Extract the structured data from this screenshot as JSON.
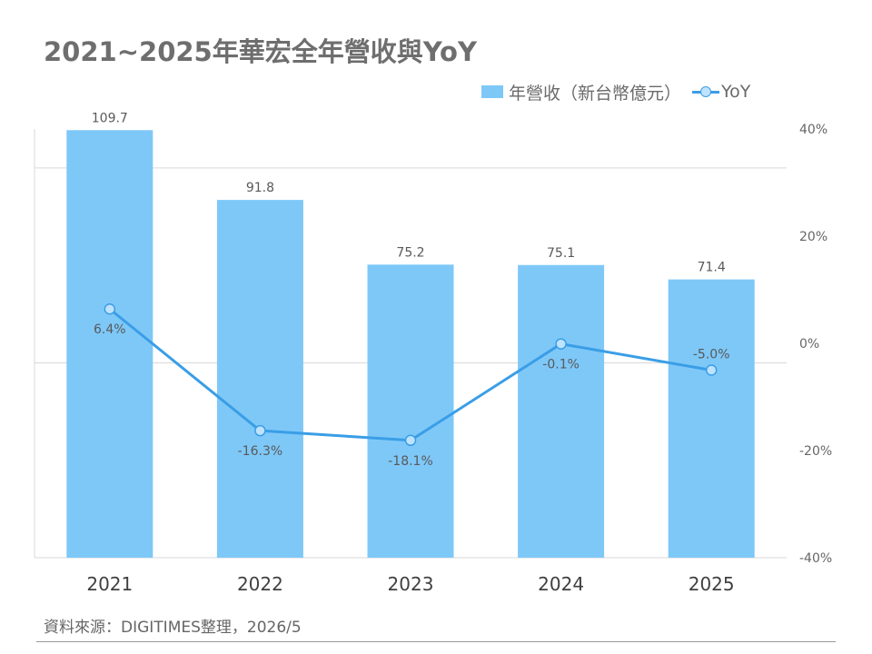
{
  "title": "2021~2025年華宏全年營收與YoY",
  "legend": {
    "bar_label": "年營收（新台幣億元）",
    "line_label": "YoY"
  },
  "source": "資料來源：DIGITIMES整理，2026/5",
  "colors": {
    "bar": "#7ec8f8",
    "line": "#3a9ee6",
    "marker_fill": "#bfe3fc",
    "grid": "#d9d9d9",
    "label": "#595959"
  },
  "chart_data": {
    "type": "bar+line",
    "categories": [
      "2021",
      "2022",
      "2023",
      "2024",
      "2025"
    ],
    "series": [
      {
        "name": "年營收（新台幣億元）",
        "type": "bar",
        "axis": "left",
        "values": [
          109.7,
          91.8,
          75.2,
          75.1,
          71.4
        ],
        "labels": [
          "109.7",
          "91.8",
          "75.2",
          "75.1",
          "71.4"
        ]
      },
      {
        "name": "YoY",
        "type": "line",
        "axis": "right",
        "values": [
          6.4,
          -16.3,
          -18.1,
          -0.1,
          -5.0
        ],
        "labels": [
          "6.4%",
          "-16.3%",
          "-18.1%",
          "-0.1%",
          "-5.0%"
        ]
      }
    ],
    "left_axis": {
      "ylim": [
        0,
        110
      ]
    },
    "right_axis": {
      "ylim": [
        -40,
        40
      ],
      "ticks": [
        "40%",
        "20%",
        "0%",
        "-20%",
        "-40%"
      ],
      "tick_values": [
        40,
        20,
        0,
        -20,
        -40
      ]
    },
    "grid": true,
    "legend_position": "top-right"
  }
}
